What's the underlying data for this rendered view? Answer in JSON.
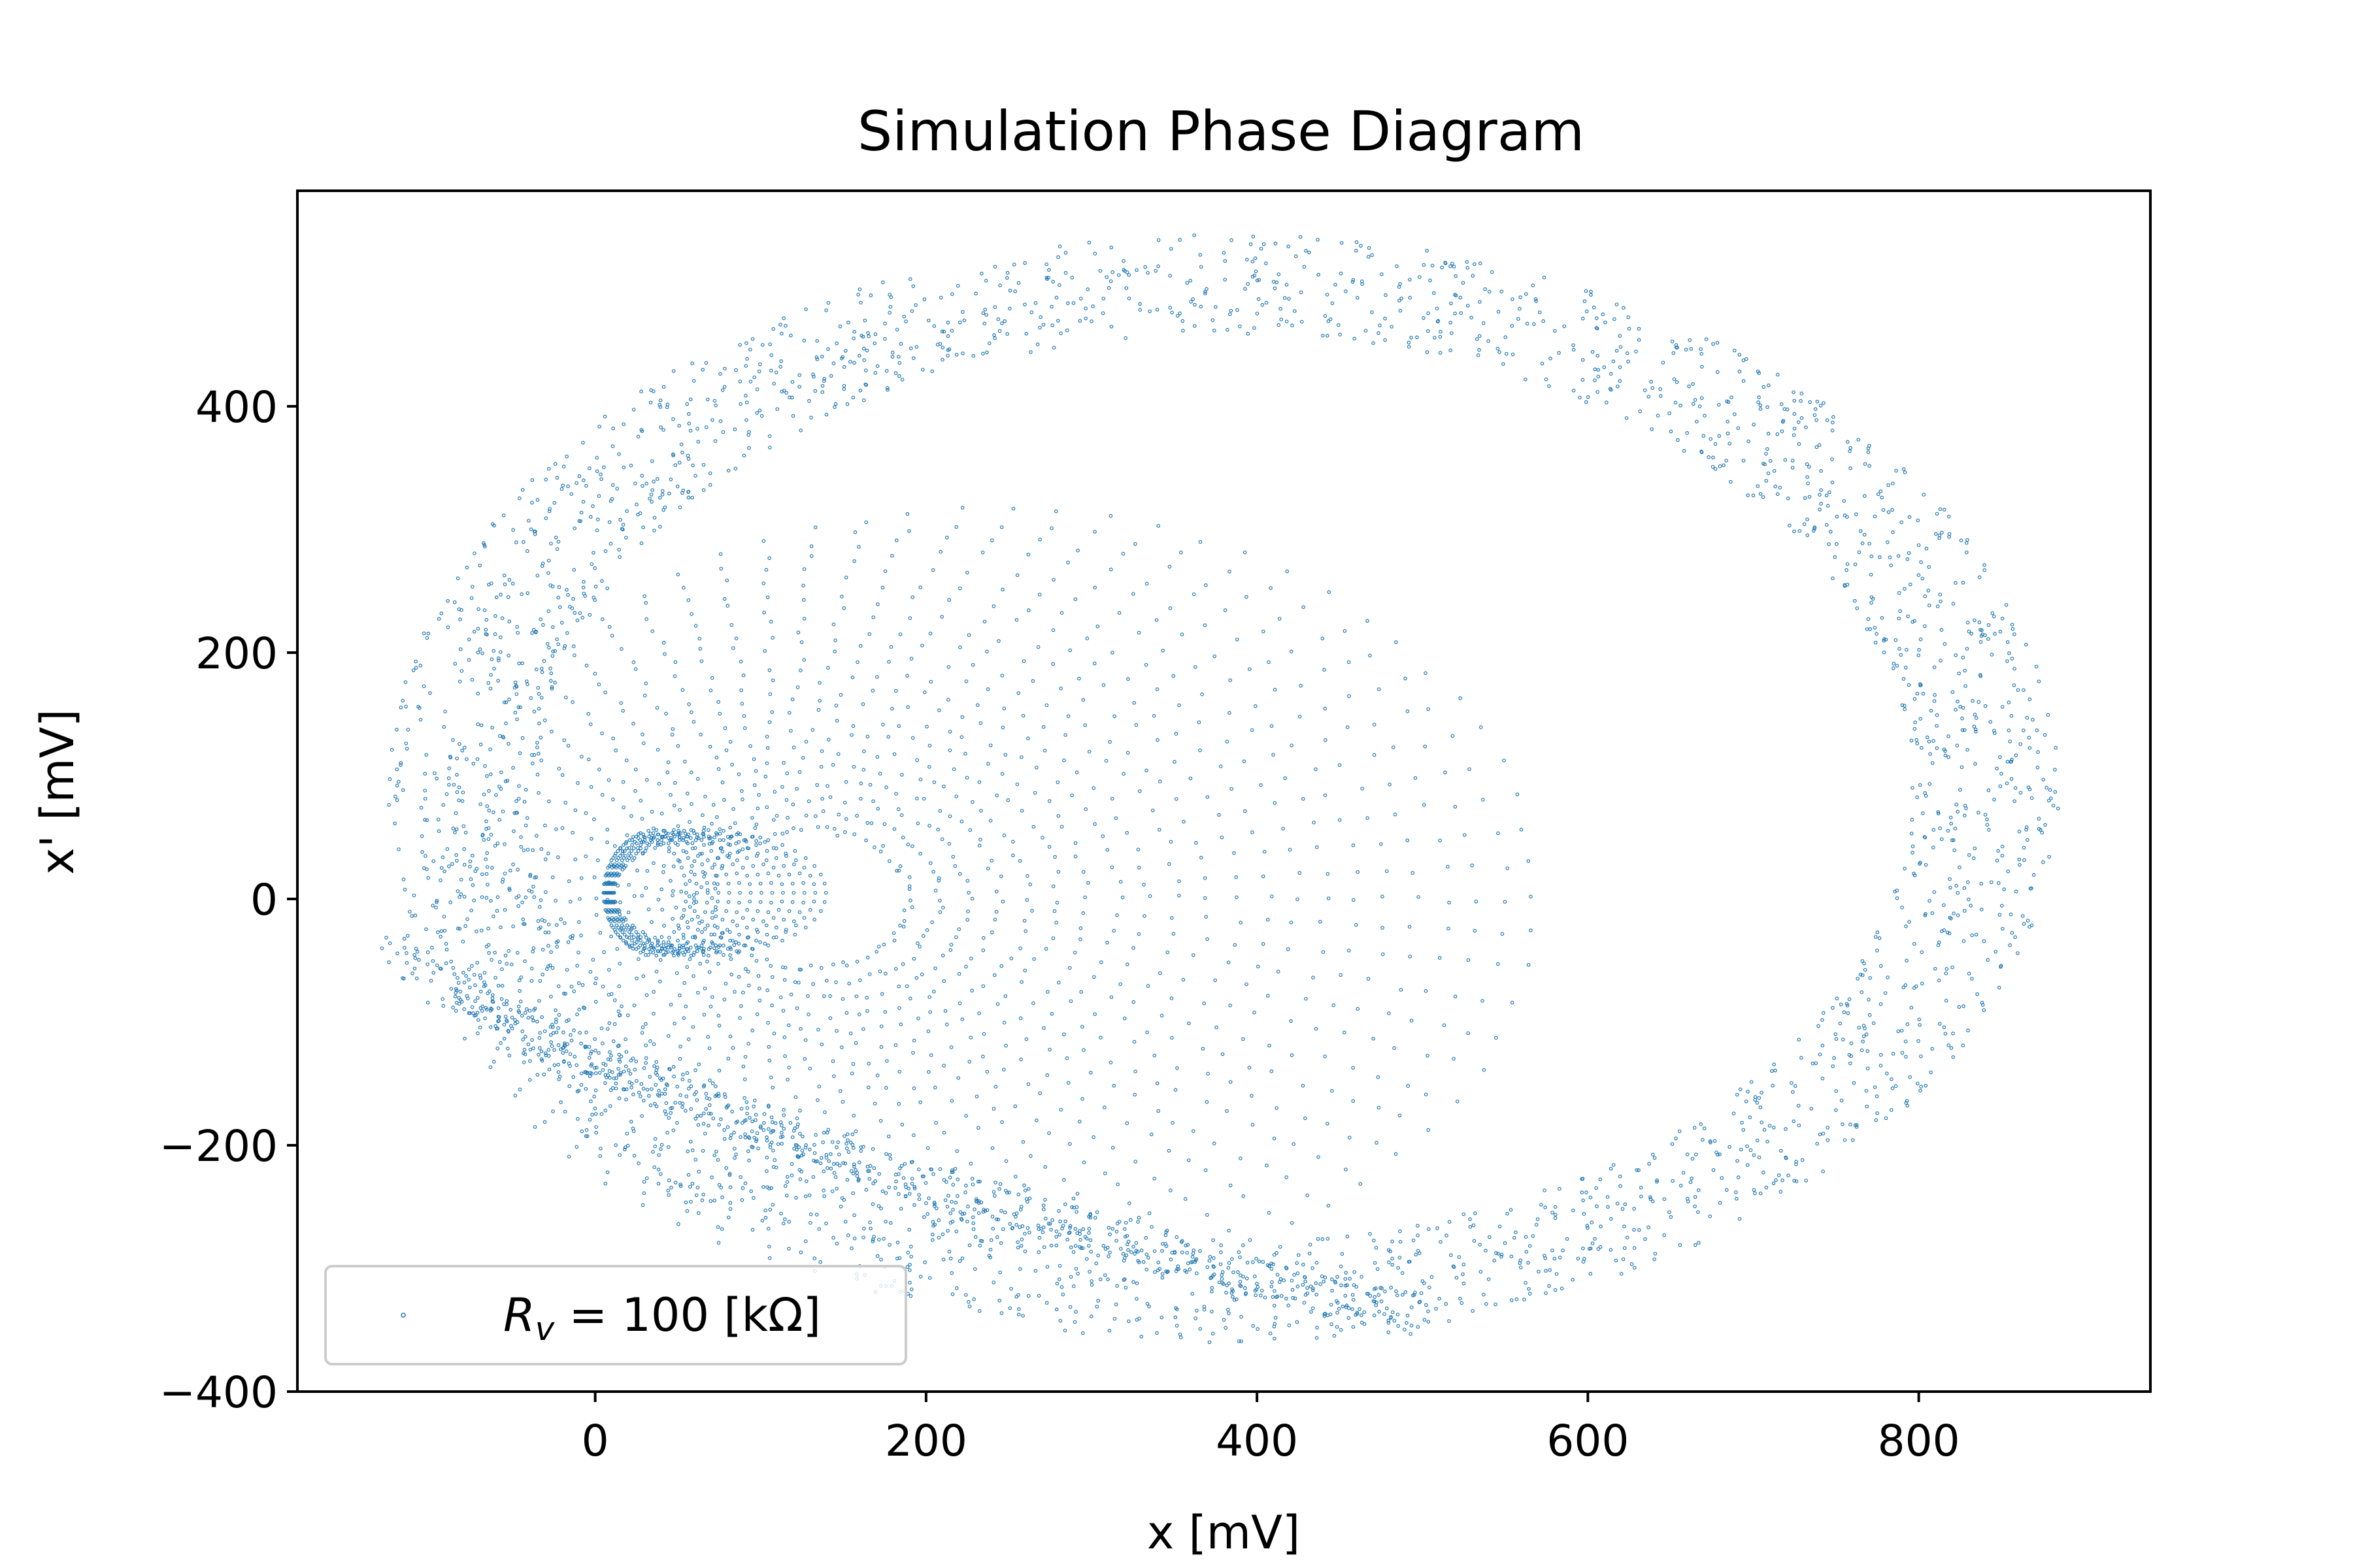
{
  "chart_data": {
    "type": "scatter",
    "title": "Simulation Phase Diagram",
    "xlabel": "x [mV]",
    "ylabel": "x' [mV]",
    "xlim": [
      -180,
      940
    ],
    "ylim": [
      -400,
      575
    ],
    "xticks": [
      0,
      200,
      400,
      600,
      800
    ],
    "yticks": [
      -400,
      -200,
      0,
      200,
      400
    ],
    "xtick_labels": [
      "0",
      "200",
      "400",
      "600",
      "800"
    ],
    "ytick_labels": [
      "−400",
      "−200",
      "0",
      "200",
      "400"
    ],
    "grid": false,
    "legend_position": "lower-left",
    "series": [
      {
        "name": "R_v = 100 [kΩ]",
        "color": "#1f77b4",
        "marker": "point",
        "description_of_shape": "double-scroll spiral: inner loops centered near (50, 0) radius ~60; expanding ellipses centered near (160, 0); outer chaotic band spanning x -125..885, y -360..540",
        "components": [
          {
            "kind": "inner-loops",
            "cx": 50,
            "cy": 5,
            "rx_range": [
              30,
              70
            ],
            "ry_range": [
              40,
              60
            ]
          },
          {
            "kind": "mid-spiral",
            "cx": 160,
            "cy": 0,
            "rx_range": [
              60,
              330
            ],
            "ry_range": [
              60,
              305
            ]
          },
          {
            "kind": "outer-band",
            "cx": 380,
            "cy": 90,
            "rx_range": [
              450,
              505
            ],
            "ry_range": [
              390,
              450
            ]
          },
          {
            "kind": "return-tail",
            "from": [
              -125,
              0
            ],
            "to": [
              500,
              -340
            ]
          }
        ]
      }
    ]
  },
  "legend": {
    "prefix": "R",
    "subscript": "v",
    "suffix": " = 100 [kΩ]"
  }
}
